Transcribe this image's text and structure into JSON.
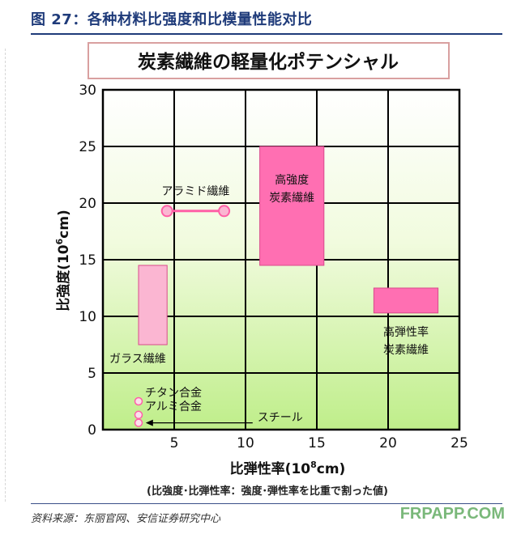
{
  "header": {
    "title": "图 27：各种材料比强度和比模量性能对比"
  },
  "chart_data": {
    "type": "range",
    "title": "炭素繊維の軽量化ポテンシャル",
    "xlabel_pre": "比弾性率(10",
    "xlabel_sup": "8",
    "xlabel_post": "cm)",
    "ylabel_pre": "比強度(10",
    "ylabel_sup": "6",
    "ylabel_post": "cm)",
    "xlim": [
      0,
      25
    ],
    "ylim": [
      0,
      30
    ],
    "xticks": [
      "5",
      "10",
      "15",
      "20",
      "25"
    ],
    "yticks": [
      "0",
      "5",
      "10",
      "15",
      "20",
      "25",
      "30"
    ],
    "grid": true,
    "series": [
      {
        "label": "ガラス繊維",
        "kind": "rect",
        "x": [
          2.5,
          4.5
        ],
        "y": [
          7.5,
          14.5
        ],
        "color": "#fbb6d2"
      },
      {
        "label": "アラミド繊維",
        "kind": "segment",
        "x": [
          4.5,
          8.5
        ],
        "y": [
          19.3,
          19.3
        ],
        "color": "#ff5fa6"
      },
      {
        "label_lines": [
          "高強度",
          "炭素繊維"
        ],
        "kind": "rect",
        "x": [
          11,
          15.5
        ],
        "y": [
          14.5,
          25
        ],
        "color": "#ff6fb2"
      },
      {
        "label_lines": [
          "高弾性率",
          "炭素繊維"
        ],
        "kind": "rect",
        "x": [
          19,
          23.5
        ],
        "y": [
          10.3,
          12.5
        ],
        "color": "#ff6fb2"
      },
      {
        "label": "チタン合金",
        "kind": "point",
        "x": [
          2.5
        ],
        "y": [
          2.5
        ],
        "color": "#ff5fa6"
      },
      {
        "label": "アルミ合金",
        "kind": "point",
        "x": [
          2.5
        ],
        "y": [
          1.3
        ],
        "color": "#ff5fa6"
      },
      {
        "label": "",
        "kind": "point",
        "x": [
          2.5
        ],
        "y": [
          0.6
        ],
        "color": "#ff5fa6"
      },
      {
        "label": "スチール",
        "kind": "arrow",
        "x": [
          10.5,
          3.0
        ],
        "y": [
          0.6,
          0.6
        ],
        "color": "#000000"
      }
    ],
    "note": "(比強度･比弾性率：強度･弾性率を比重で割った値)"
  },
  "footer": {
    "source": "资料来源：东丽官网、安信证券研究中心",
    "watermark": "FRPAPP.COM"
  }
}
